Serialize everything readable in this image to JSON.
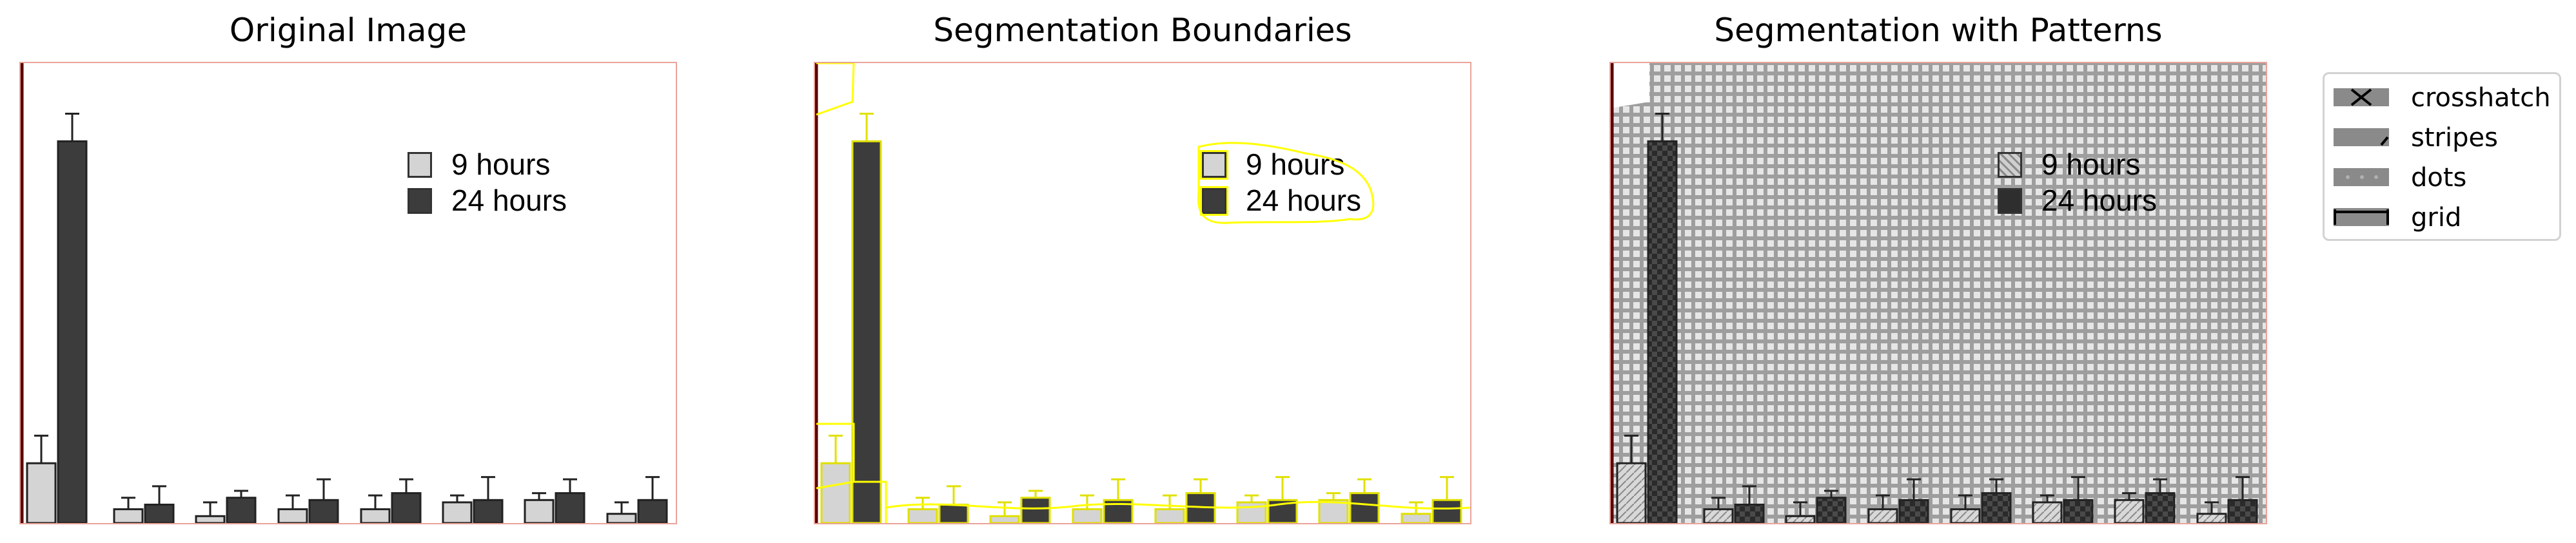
{
  "panels": [
    {
      "title": "Original Image"
    },
    {
      "title": "Segmentation Boundaries"
    },
    {
      "title": "Segmentation with Patterns"
    }
  ],
  "figure_legend": {
    "series": [
      "9 hours",
      "24 hours"
    ],
    "series_colors": [
      "#d4d4d4",
      "#3c3c3c"
    ]
  },
  "pattern_legend": [
    {
      "label": "crosshatch",
      "icon": "crosshatch-icon"
    },
    {
      "label": "stripes",
      "icon": "stripes-icon"
    },
    {
      "label": "dots",
      "icon": "dots-icon"
    },
    {
      "label": "grid",
      "icon": "grid-icon"
    }
  ],
  "chart_data": {
    "type": "bar",
    "series": [
      {
        "name": "9 hours",
        "values": [
          0.13,
          0.03,
          0.015,
          0.03,
          0.03,
          0.045,
          0.05,
          0.02
        ]
      },
      {
        "name": "24 hours",
        "values": [
          0.83,
          0.04,
          0.055,
          0.05,
          0.065,
          0.05,
          0.065,
          0.05
        ]
      }
    ],
    "errors": [
      {
        "name": "9 hours",
        "values": [
          0.06,
          0.025,
          0.03,
          0.03,
          0.03,
          0.015,
          0.015,
          0.025
        ]
      },
      {
        "name": "24 hours",
        "values": [
          0.06,
          0.04,
          0.015,
          0.045,
          0.03,
          0.05,
          0.03,
          0.05
        ]
      }
    ],
    "ylim": [
      0,
      1
    ],
    "colors": {
      "boundary": "#ffff00",
      "axis": "#5a0000",
      "pattern_fill": "#9e9e9e"
    }
  }
}
